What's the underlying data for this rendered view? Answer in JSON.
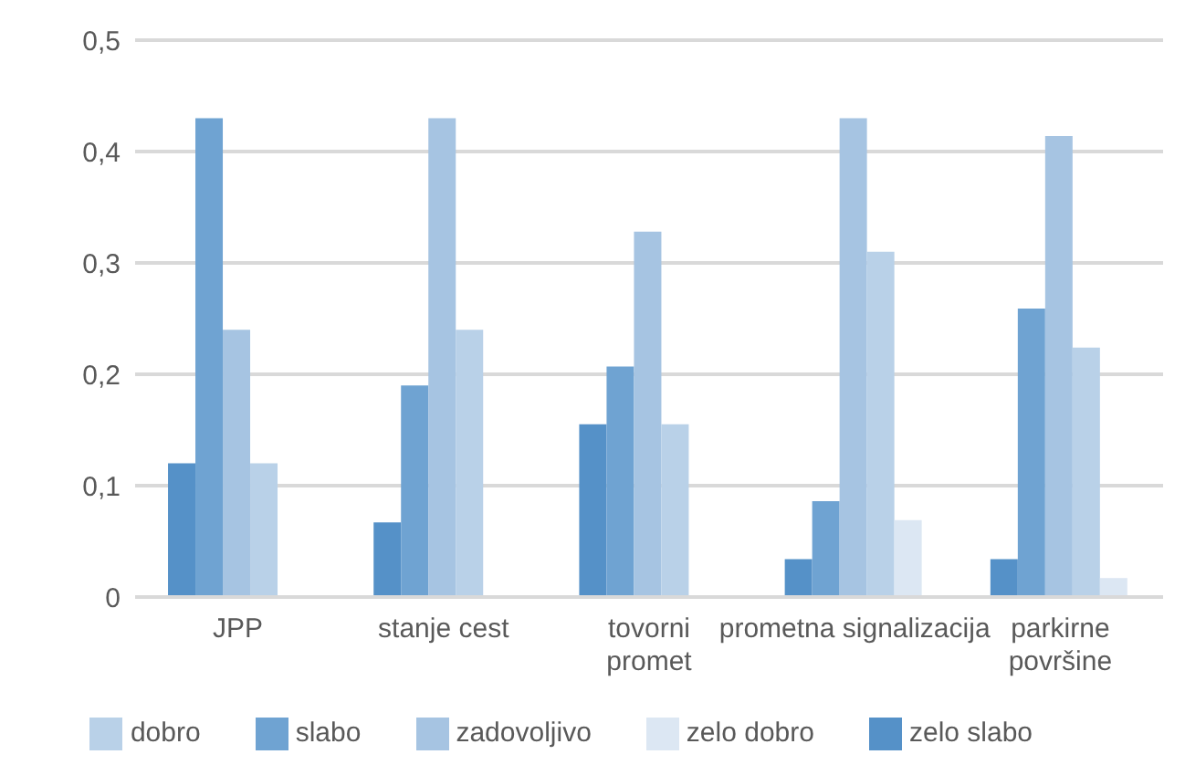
{
  "chart_data": {
    "type": "bar",
    "categories": [
      "JPP",
      "stanje cest",
      "tovorni promet",
      "prometna signalizacija",
      "parkirne površine"
    ],
    "series": [
      {
        "name": "zelo slabo",
        "color": "#5591c8",
        "values": [
          0.12,
          0.067,
          0.155,
          0.034,
          0.034
        ]
      },
      {
        "name": "slabo",
        "color": "#6fa3d2",
        "values": [
          0.43,
          0.19,
          0.207,
          0.086,
          0.259
        ]
      },
      {
        "name": "zadovoljivo",
        "color": "#a6c4e2",
        "values": [
          0.24,
          0.43,
          0.328,
          0.43,
          0.414
        ]
      },
      {
        "name": "dobro",
        "color": "#b9d1e8",
        "values": [
          0.12,
          0.24,
          0.155,
          0.31,
          0.224
        ]
      },
      {
        "name": "zelo dobro",
        "color": "#dce7f3",
        "values": [
          0,
          0,
          0,
          0.069,
          0.017
        ]
      }
    ],
    "ylim": [
      0,
      0.5
    ],
    "yticks": [
      {
        "value": 0,
        "label": "0"
      },
      {
        "value": 0.1,
        "label": "0,1"
      },
      {
        "value": 0.2,
        "label": "0,2"
      },
      {
        "value": 0.3,
        "label": "0,3"
      },
      {
        "value": 0.4,
        "label": "0,4"
      },
      {
        "value": 0.5,
        "label": "0,5"
      }
    ],
    "grid": "y",
    "legend": "bottom"
  }
}
